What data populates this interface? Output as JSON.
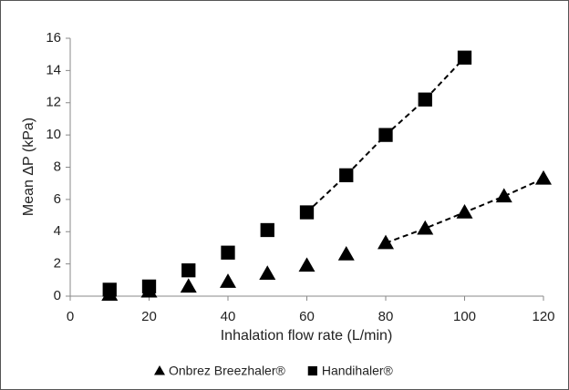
{
  "chart_data": {
    "type": "scatter",
    "xlabel": "Inhalation flow rate (L/min)",
    "ylabel": "Mean ΔP (kPa)",
    "xlim": [
      0,
      120
    ],
    "xticks": [
      0,
      20,
      40,
      60,
      80,
      100,
      120
    ],
    "ylim": [
      0,
      16
    ],
    "yticks": [
      0,
      2,
      4,
      6,
      8,
      10,
      12,
      14,
      16
    ],
    "grid": false,
    "legend": "bottom",
    "series": [
      {
        "name": "Onbrez Breezhaler®",
        "color": "#000000",
        "marker": "triangle",
        "dashed_from": 80,
        "x": [
          10,
          20,
          30,
          40,
          50,
          60,
          70,
          80,
          90,
          100,
          110,
          120
        ],
        "values": [
          0.1,
          0.3,
          0.6,
          0.9,
          1.4,
          1.9,
          2.6,
          3.3,
          4.2,
          5.2,
          6.2,
          7.3
        ]
      },
      {
        "name": "Handihaler®",
        "color": "#000000",
        "marker": "square",
        "dashed_from": 60,
        "x": [
          10,
          20,
          30,
          40,
          50,
          60,
          70,
          80,
          90,
          100
        ],
        "values": [
          0.4,
          0.6,
          1.6,
          2.7,
          4.1,
          5.2,
          7.5,
          10.0,
          12.2,
          14.8
        ]
      }
    ]
  }
}
